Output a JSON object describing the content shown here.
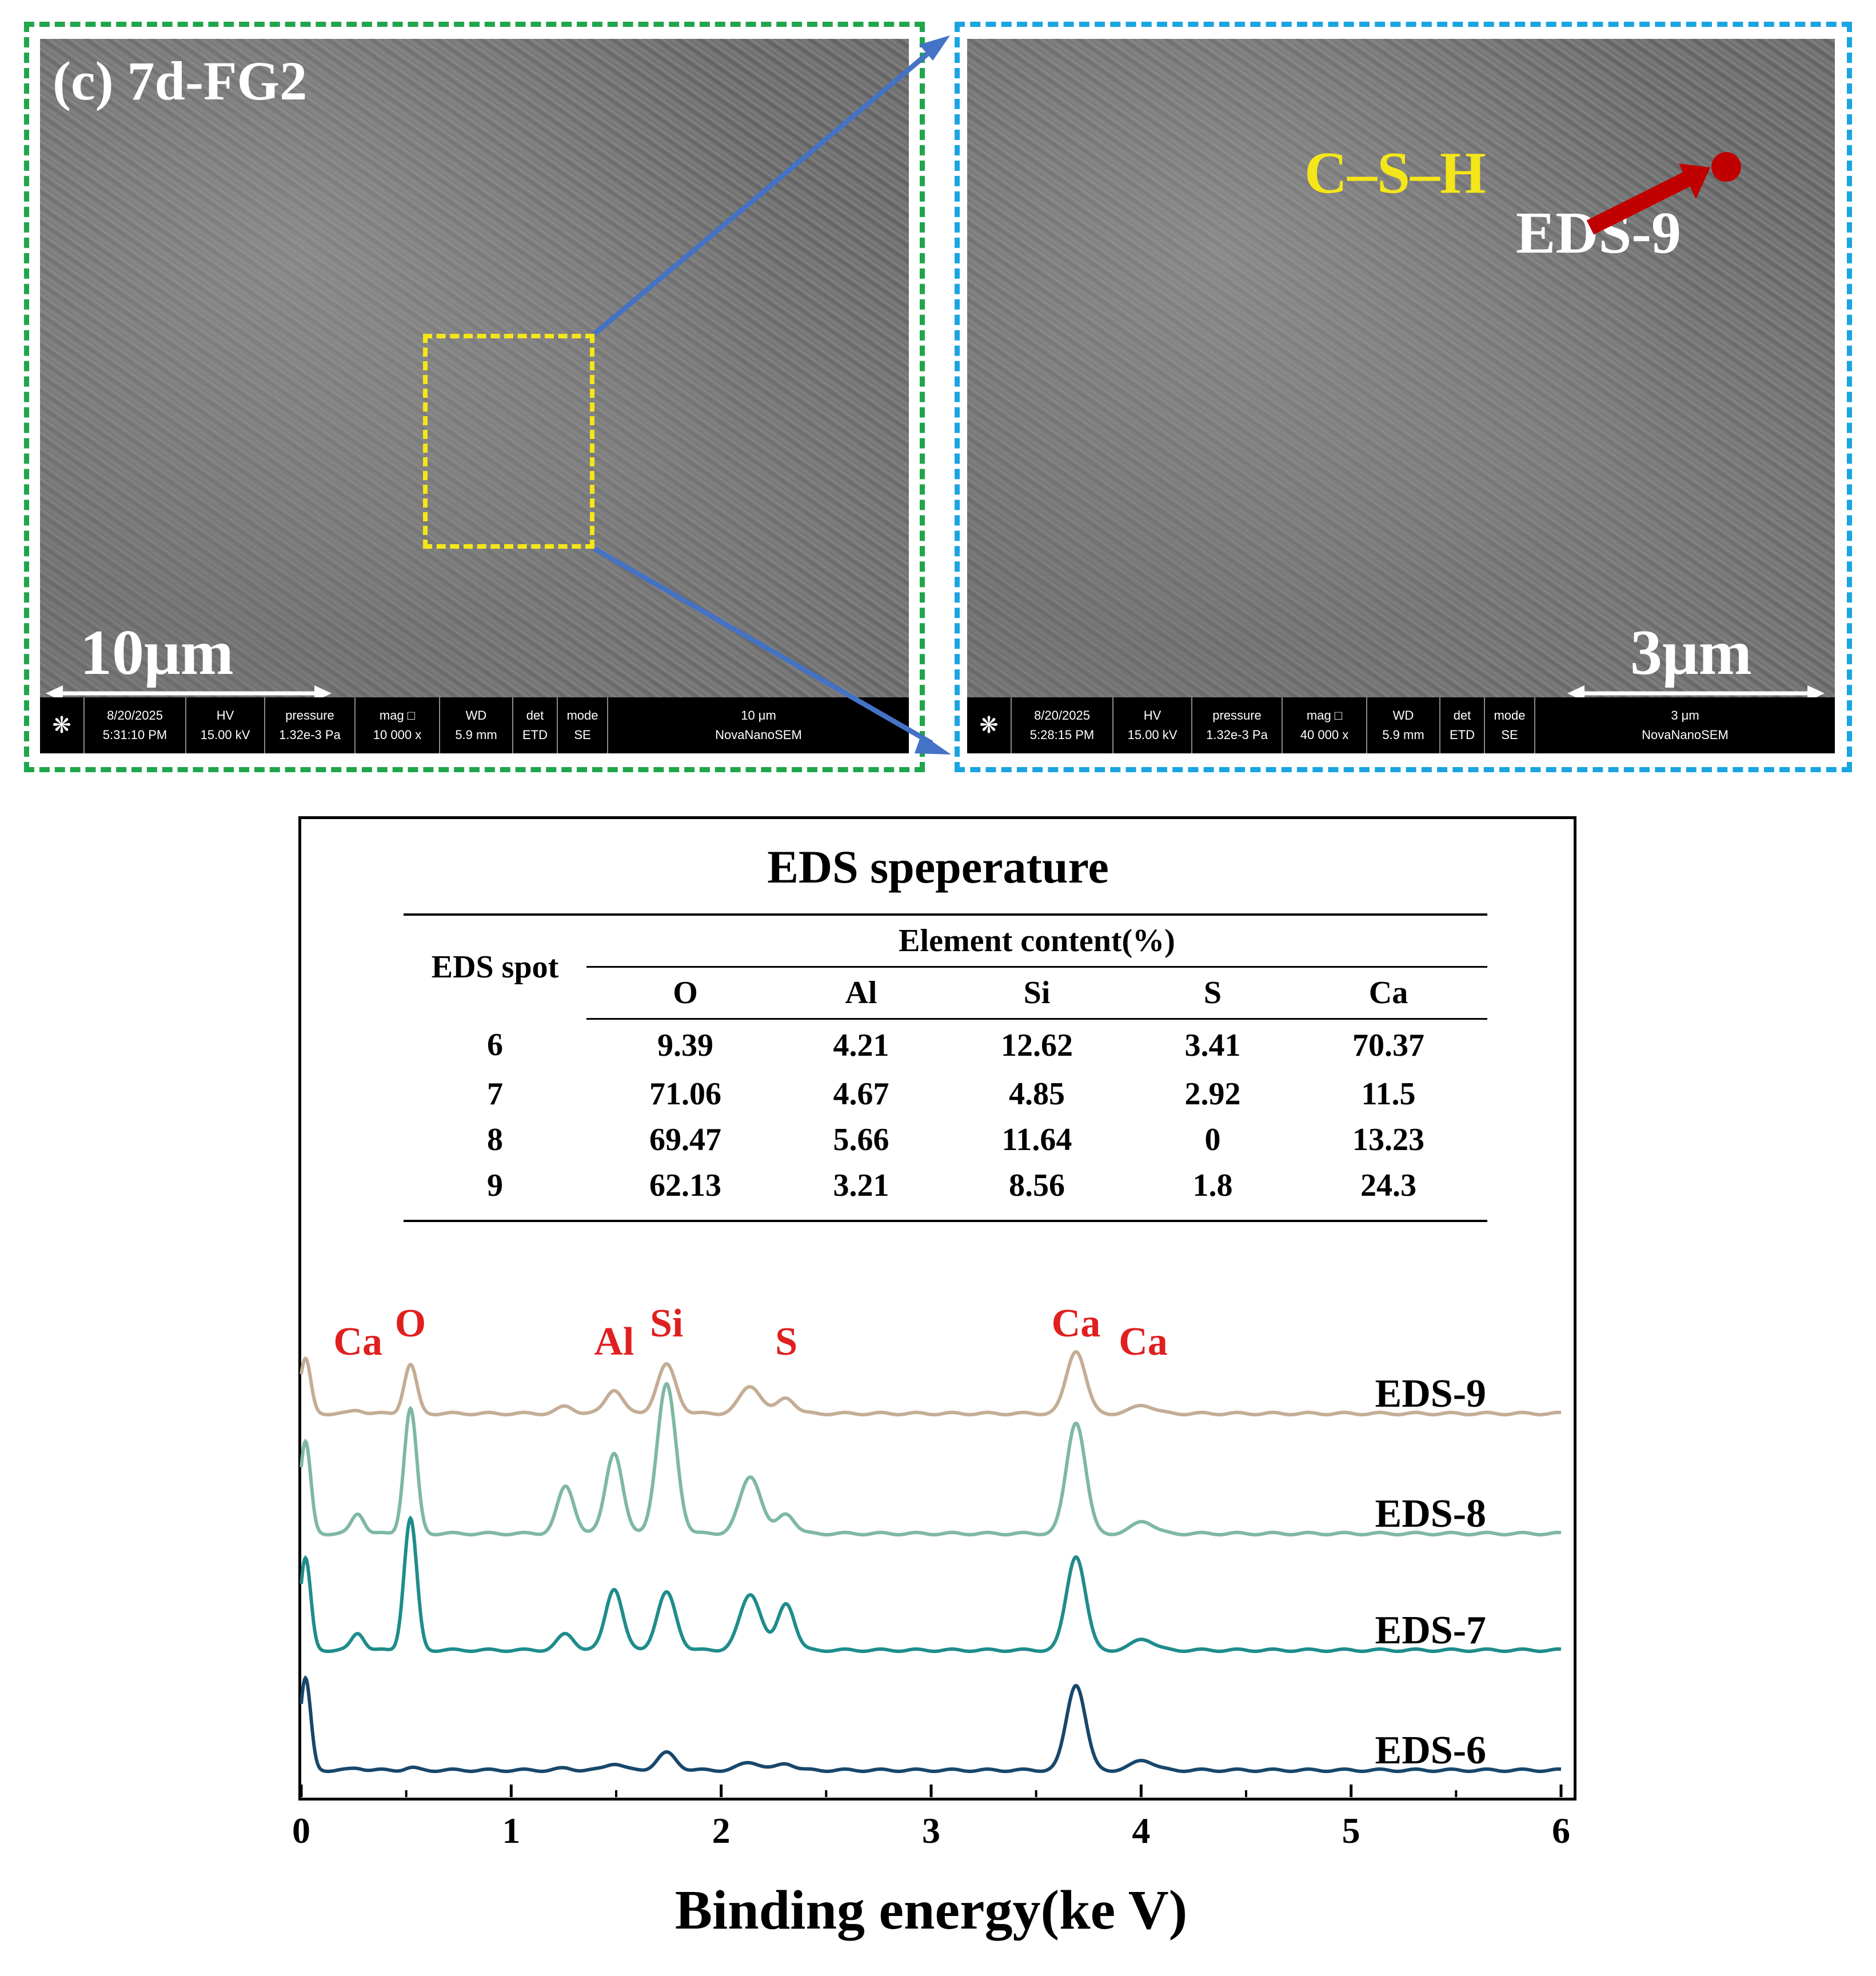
{
  "sem": {
    "left": {
      "label": "(c) 7d-FG2",
      "scale": "10μm",
      "info": {
        "date": "8/20/2025",
        "time": "5:31:10 PM",
        "hv_label": "HV",
        "hv": "15.00 kV",
        "pressure_label": "pressure",
        "pressure": "1.32e-3 Pa",
        "mag_label": "mag □",
        "mag": "10 000 x",
        "wd_label": "WD",
        "wd": "5.9 mm",
        "det_label": "det",
        "det": "ETD",
        "mode_label": "mode",
        "mode": "SE",
        "bar": "10 μm",
        "instrument": "NovaNanoSEM"
      }
    },
    "right": {
      "scale": "3μm",
      "phase_label": "C–S–H",
      "spot_label": "EDS-9",
      "info": {
        "date": "8/20/2025",
        "time": "5:28:15 PM",
        "hv_label": "HV",
        "hv": "15.00 kV",
        "pressure_label": "pressure",
        "pressure": "1.32e-3 Pa",
        "mag_label": "mag □",
        "mag": "40 000 x",
        "wd_label": "WD",
        "wd": "5.9 mm",
        "det_label": "det",
        "det": "ETD",
        "mode_label": "mode",
        "mode": "SE",
        "bar": "3 μm",
        "instrument": "NovaNanoSEM"
      }
    }
  },
  "colors": {
    "left_frame": "#1fa64a",
    "right_frame": "#19a4e2",
    "roi": "#f5e61a",
    "arrow": "#4472c4",
    "peak_label": "#e0201f",
    "spot_marker": "#c00000"
  },
  "chart_data": {
    "type": "line",
    "title": "EDS speperature",
    "xlabel": "Binding energy(ke V)",
    "ylabel": "",
    "xlim": [
      0,
      6
    ],
    "xticks": [
      "0",
      "1",
      "2",
      "3",
      "4",
      "5",
      "6"
    ],
    "table": {
      "row_header": "EDS spot",
      "group_header": "Element content(%)",
      "columns": [
        "O",
        "Al",
        "Si",
        "S",
        "Ca"
      ],
      "rows": [
        {
          "spot": "6",
          "values": [
            "9.39",
            "4.21",
            "12.62",
            "3.41",
            "70.37"
          ]
        },
        {
          "spot": "7",
          "values": [
            "71.06",
            "4.67",
            "4.85",
            "2.92",
            "11.5"
          ]
        },
        {
          "spot": "8",
          "values": [
            "69.47",
            "5.66",
            "11.64",
            "0",
            "13.23"
          ]
        },
        {
          "spot": "9",
          "values": [
            "62.13",
            "3.21",
            "8.56",
            "1.8",
            "24.3"
          ]
        }
      ]
    },
    "peak_labels": [
      {
        "text": "Ca",
        "x": 0.27
      },
      {
        "text": "O",
        "x": 0.52
      },
      {
        "text": "Al",
        "x": 1.49
      },
      {
        "text": "Si",
        "x": 1.74
      },
      {
        "text": "S",
        "x": 2.31
      },
      {
        "text": "Ca",
        "x": 3.69
      },
      {
        "text": "Ca",
        "x": 4.01
      }
    ],
    "series": [
      {
        "name": "EDS-9",
        "color": "#c4ad96",
        "peaks": [
          [
            0.02,
            0.95,
            0.025
          ],
          [
            0.27,
            0.06,
            0.03
          ],
          [
            0.52,
            0.85,
            0.03
          ],
          [
            1.26,
            0.12,
            0.04
          ],
          [
            1.49,
            0.42,
            0.04
          ],
          [
            1.74,
            0.85,
            0.045
          ],
          [
            2.14,
            0.48,
            0.05
          ],
          [
            2.31,
            0.28,
            0.04
          ],
          [
            3.69,
            1.1,
            0.045
          ],
          [
            4.01,
            0.15,
            0.05
          ]
        ]
      },
      {
        "name": "EDS-8",
        "color": "#7fb8a4",
        "peaks": [
          [
            0.02,
            1.6,
            0.025
          ],
          [
            0.27,
            0.35,
            0.03
          ],
          [
            0.52,
            2.18,
            0.03
          ],
          [
            1.26,
            0.82,
            0.04
          ],
          [
            1.49,
            1.42,
            0.04
          ],
          [
            1.74,
            2.6,
            0.045
          ],
          [
            2.14,
            1.0,
            0.05
          ],
          [
            2.31,
            0.35,
            0.04
          ],
          [
            3.69,
            1.95,
            0.045
          ],
          [
            4.01,
            0.22,
            0.05
          ]
        ]
      },
      {
        "name": "EDS-7",
        "color": "#1f8c8c",
        "peaks": [
          [
            0.02,
            1.6,
            0.025
          ],
          [
            0.27,
            0.3,
            0.03
          ],
          [
            0.52,
            2.3,
            0.03
          ],
          [
            1.26,
            0.28,
            0.04
          ],
          [
            1.49,
            1.08,
            0.04
          ],
          [
            1.74,
            1.0,
            0.045
          ],
          [
            2.14,
            0.98,
            0.05
          ],
          [
            2.31,
            0.82,
            0.04
          ],
          [
            3.69,
            1.65,
            0.045
          ],
          [
            4.01,
            0.2,
            0.05
          ]
        ]
      },
      {
        "name": "EDS-6",
        "color": "#17476b",
        "peaks": [
          [
            0.02,
            1.6,
            0.025
          ],
          [
            0.27,
            0.04,
            0.03
          ],
          [
            0.52,
            0.04,
            0.03
          ],
          [
            1.26,
            0.03,
            0.04
          ],
          [
            1.49,
            0.12,
            0.04
          ],
          [
            1.74,
            0.3,
            0.045
          ],
          [
            2.14,
            0.14,
            0.05
          ],
          [
            2.31,
            0.12,
            0.04
          ],
          [
            3.69,
            1.5,
            0.045
          ],
          [
            4.01,
            0.18,
            0.05
          ]
        ]
      }
    ]
  }
}
